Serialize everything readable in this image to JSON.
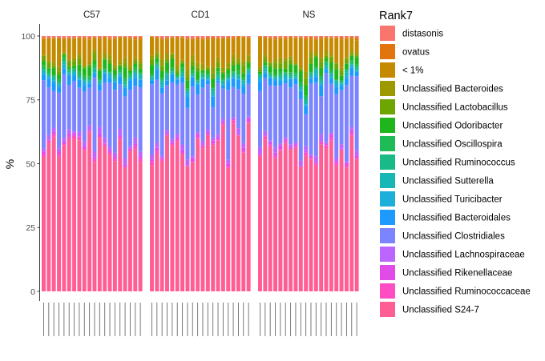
{
  "chart_data": {
    "type": "bar",
    "stacked": true,
    "ylabel": "%",
    "ylim": [
      0,
      100
    ],
    "yticks": [
      0,
      25,
      50,
      75,
      100
    ],
    "grid": false,
    "legend_position": "right",
    "legend_title": "Rank7",
    "facets": [
      {
        "label": "C57",
        "n_samples": 20
      },
      {
        "label": "CD1",
        "n_samples": 20
      },
      {
        "label": "NS",
        "n_samples": 20
      }
    ],
    "series": [
      {
        "name": "Unclassified S24-7",
        "color": "#FF5E94",
        "mean_share": 56,
        "variation": 12
      },
      {
        "name": "Unclassified Ruminococcaceae",
        "color": "#FF4EC3",
        "mean_share": 0.8,
        "variation": 0.6
      },
      {
        "name": "Unclassified Rikenellaceae",
        "color": "#E14BE8",
        "mean_share": 0.8,
        "variation": 0.6
      },
      {
        "name": "Unclassified Lachnospiraceae",
        "color": "#BC66FF",
        "mean_share": 1.5,
        "variation": 1.0
      },
      {
        "name": "Unclassified Clostridiales",
        "color": "#7C84FF",
        "mean_share": 20,
        "variation": 9
      },
      {
        "name": "Unclassified Bacteroidales",
        "color": "#1E9AFF",
        "mean_share": 2.5,
        "variation": 1.6
      },
      {
        "name": "Unclassified  Turicibacter",
        "color": "#1BAFDA",
        "mean_share": 0.8,
        "variation": 0.6
      },
      {
        "name": "Unclassified  Sutterella",
        "color": "#18B6B4",
        "mean_share": 0.7,
        "variation": 0.5
      },
      {
        "name": "Unclassified  Ruminococcus",
        "color": "#18BB87",
        "mean_share": 0.7,
        "variation": 0.5
      },
      {
        "name": "Unclassified  Oscillospira",
        "color": "#1FBB56",
        "mean_share": 0.9,
        "variation": 0.6
      },
      {
        "name": "Unclassified  Odoribacter",
        "color": "#1FB61D",
        "mean_share": 2.5,
        "variation": 1.8
      },
      {
        "name": "Unclassified  Lactobacillus",
        "color": "#6FA500",
        "mean_share": 1.5,
        "variation": 1.2
      },
      {
        "name": "Unclassified  Bacteroides",
        "color": "#9C9A00",
        "mean_share": 1.5,
        "variation": 1.0
      },
      {
        "name": "< 1%",
        "color": "#C58A00",
        "mean_share": 8,
        "variation": 4
      },
      {
        "name": " ovatus",
        "color": "#E2760E",
        "mean_share": 0.5,
        "variation": 0.4
      },
      {
        "name": " distasonis",
        "color": "#F8766D",
        "mean_share": 0.5,
        "variation": 0.4
      }
    ]
  }
}
